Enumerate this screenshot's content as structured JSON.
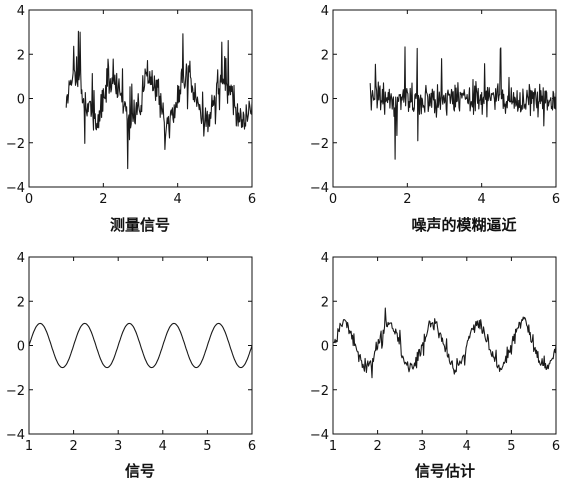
{
  "chart_data": [
    {
      "type": "line",
      "title": "测量信号",
      "xlim": [
        0,
        6
      ],
      "ylim": [
        -4,
        4
      ],
      "xticks": [
        0,
        2,
        4,
        6
      ],
      "yticks": [
        -4,
        -2,
        0,
        2,
        4
      ],
      "x_range": [
        1,
        6
      ],
      "signal": {
        "amplitude": 1.0,
        "period": 1.0,
        "phase_x": 1.0,
        "wave": "sine"
      },
      "noise": {
        "std": 0.45,
        "spike_amplitude": 2.3
      },
      "grid": false
    },
    {
      "type": "line",
      "title": "噪声的模糊逼近",
      "xlim": [
        0,
        6
      ],
      "ylim": [
        -4,
        4
      ],
      "xticks": [
        0,
        2,
        4,
        6
      ],
      "yticks": [
        -4,
        -2,
        0,
        2,
        4
      ],
      "x_range": [
        1,
        6
      ],
      "signal": {
        "amplitude": 0.0,
        "period": 1.0,
        "phase_x": 1.0,
        "wave": "sine"
      },
      "noise": {
        "std": 0.45,
        "spike_amplitude": 2.4
      },
      "grid": false
    },
    {
      "type": "line",
      "title": "信号",
      "xlim": [
        1,
        6
      ],
      "ylim": [
        -4,
        4
      ],
      "xticks": [
        1,
        2,
        3,
        4,
        5,
        6
      ],
      "yticks": [
        -4,
        -2,
        0,
        2,
        4
      ],
      "x_range": [
        1,
        6
      ],
      "signal": {
        "amplitude": 1.0,
        "period": 1.0,
        "phase_x": 1.0,
        "wave": "sine"
      },
      "noise": {
        "std": 0.0,
        "spike_amplitude": 0.0
      },
      "grid": false
    },
    {
      "type": "line",
      "title": "信号估计",
      "xlim": [
        1,
        6
      ],
      "ylim": [
        -4,
        4
      ],
      "xticks": [
        1,
        2,
        3,
        4,
        5,
        6
      ],
      "yticks": [
        -4,
        -2,
        0,
        2,
        4
      ],
      "x_range": [
        1,
        6
      ],
      "signal": {
        "amplitude": 1.0,
        "period": 1.0,
        "phase_x": 1.0,
        "wave": "sine"
      },
      "noise": {
        "std": 0.18,
        "spike_amplitude": 0.8
      },
      "grid": false
    }
  ]
}
